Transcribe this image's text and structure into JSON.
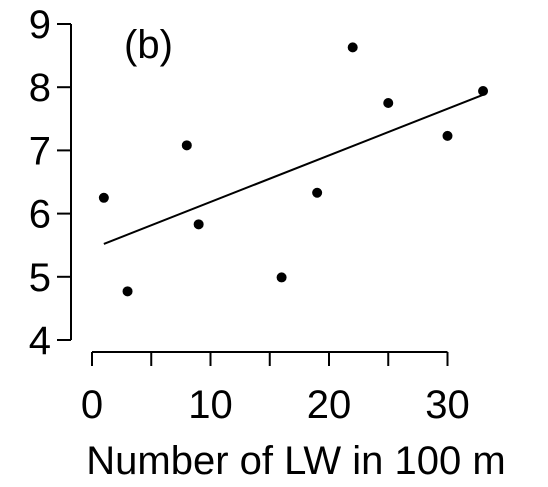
{
  "chart_data": {
    "type": "scatter",
    "panel_label": "(b)",
    "title": "",
    "xlabel": "Number of LW in 100 m",
    "ylabel": "",
    "xlim": [
      0,
      35
    ],
    "ylim": [
      4,
      9
    ],
    "x_ticks": [
      0,
      10,
      20,
      30
    ],
    "y_ticks": [
      4,
      5,
      6,
      7,
      8,
      9
    ],
    "grid": false,
    "points": [
      {
        "x": 1,
        "y": 6.25
      },
      {
        "x": 3,
        "y": 4.77
      },
      {
        "x": 8,
        "y": 7.08
      },
      {
        "x": 9,
        "y": 5.83
      },
      {
        "x": 16,
        "y": 4.99
      },
      {
        "x": 19,
        "y": 6.33
      },
      {
        "x": 22,
        "y": 8.63
      },
      {
        "x": 25,
        "y": 7.75
      },
      {
        "x": 30,
        "y": 7.23
      },
      {
        "x": 33,
        "y": 7.94
      }
    ],
    "trend_line": {
      "x": [
        1,
        33
      ],
      "y": [
        5.52,
        7.88
      ]
    }
  }
}
